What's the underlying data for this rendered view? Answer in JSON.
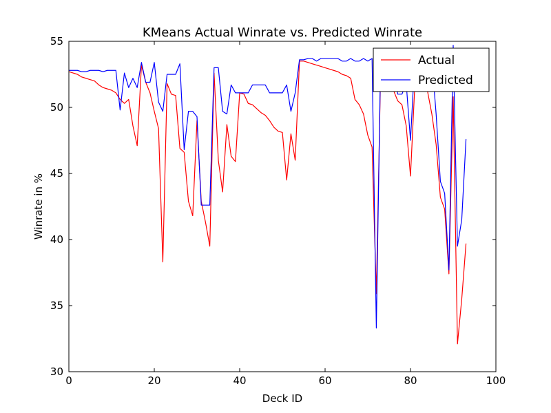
{
  "chart_data": {
    "type": "line",
    "title": "KMeans Actual Winrate vs. Predicted Winrate",
    "xlabel": "Deck ID",
    "ylabel": "Winrate in %",
    "xlim": [
      0,
      100
    ],
    "ylim": [
      30,
      55
    ],
    "xticks": [
      0,
      20,
      40,
      60,
      80,
      100
    ],
    "yticks": [
      30,
      35,
      40,
      45,
      50,
      55
    ],
    "grid": false,
    "legend_position": "top-right",
    "series": [
      {
        "name": "Actual",
        "color": "#ff0000",
        "x": [
          0,
          1,
          2,
          3,
          4,
          5,
          6,
          7,
          8,
          9,
          10,
          11,
          12,
          13,
          14,
          15,
          16,
          17,
          18,
          19,
          20,
          21,
          22,
          23,
          24,
          25,
          26,
          27,
          28,
          29,
          30,
          31,
          32,
          33,
          34,
          35,
          36,
          37,
          38,
          39,
          40,
          41,
          42,
          43,
          44,
          45,
          46,
          47,
          48,
          49,
          50,
          51,
          52,
          53,
          54,
          55,
          56,
          57,
          58,
          59,
          60,
          61,
          62,
          63,
          64,
          65,
          66,
          67,
          68,
          69,
          70,
          71,
          72,
          73,
          74,
          75,
          76,
          77,
          78,
          79,
          80,
          81,
          82,
          83,
          84,
          85,
          86,
          87,
          88,
          89,
          90,
          91,
          92,
          93
        ],
        "values": [
          52.7,
          52.6,
          52.5,
          52.3,
          52.2,
          52.1,
          52.0,
          51.7,
          51.5,
          51.4,
          51.3,
          51.1,
          50.6,
          50.3,
          50.6,
          48.6,
          47.1,
          53.2,
          51.9,
          51.1,
          49.7,
          48.4,
          38.3,
          51.8,
          51.0,
          50.9,
          46.9,
          46.6,
          42.9,
          41.8,
          49.0,
          42.9,
          41.3,
          39.5,
          52.6,
          46.0,
          43.6,
          48.7,
          46.3,
          45.9,
          51.1,
          51.0,
          50.3,
          50.2,
          49.9,
          49.6,
          49.4,
          49.0,
          48.5,
          48.2,
          48.1,
          44.5,
          48.0,
          46.0,
          53.5,
          53.5,
          53.4,
          53.3,
          53.2,
          53.1,
          53.0,
          52.9,
          52.8,
          52.7,
          52.5,
          52.4,
          52.2,
          50.6,
          50.2,
          49.5,
          47.9,
          47.0,
          35.9,
          52.6,
          52.4,
          51.8,
          51.3,
          50.5,
          50.2,
          48.6,
          44.8,
          51.6,
          51.5,
          51.3,
          51.2,
          49.5,
          47.2,
          43.2,
          42.3,
          37.4,
          50.8,
          32.1,
          35.5,
          39.7
        ]
      },
      {
        "name": "Predicted",
        "color": "#0000ff",
        "x": [
          0,
          1,
          2,
          3,
          4,
          5,
          6,
          7,
          8,
          9,
          10,
          11,
          12,
          13,
          14,
          15,
          16,
          17,
          18,
          19,
          20,
          21,
          22,
          23,
          24,
          25,
          26,
          27,
          28,
          29,
          30,
          31,
          32,
          33,
          34,
          35,
          36,
          37,
          38,
          39,
          40,
          41,
          42,
          43,
          44,
          45,
          46,
          47,
          48,
          49,
          50,
          51,
          52,
          53,
          54,
          55,
          56,
          57,
          58,
          59,
          60,
          61,
          62,
          63,
          64,
          65,
          66,
          67,
          68,
          69,
          70,
          71,
          72,
          73,
          74,
          75,
          76,
          77,
          78,
          79,
          80,
          81,
          82,
          83,
          84,
          85,
          86,
          87,
          88,
          89,
          90,
          91,
          92,
          93
        ],
        "values": [
          52.8,
          52.8,
          52.8,
          52.7,
          52.7,
          52.8,
          52.8,
          52.8,
          52.7,
          52.8,
          52.8,
          52.8,
          49.8,
          52.6,
          51.5,
          52.2,
          51.5,
          53.4,
          51.9,
          51.9,
          53.4,
          50.4,
          49.7,
          52.5,
          52.5,
          52.5,
          53.3,
          46.8,
          49.7,
          49.7,
          49.3,
          42.6,
          42.6,
          42.6,
          53.0,
          53.0,
          49.7,
          49.5,
          51.7,
          51.1,
          51.1,
          51.1,
          51.1,
          51.7,
          51.7,
          51.7,
          51.7,
          51.1,
          51.1,
          51.1,
          51.1,
          51.7,
          49.7,
          51.1,
          53.6,
          53.6,
          53.7,
          53.7,
          53.5,
          53.7,
          53.7,
          53.7,
          53.7,
          53.7,
          53.5,
          53.5,
          53.7,
          53.5,
          53.5,
          53.7,
          53.5,
          53.7,
          33.3,
          53.6,
          53.6,
          53.6,
          53.6,
          51.0,
          51.0,
          51.8,
          47.5,
          53.6,
          53.6,
          53.6,
          53.6,
          53.6,
          49.5,
          44.4,
          43.5,
          37.7,
          54.7,
          39.5,
          41.5,
          47.6
        ]
      }
    ]
  }
}
